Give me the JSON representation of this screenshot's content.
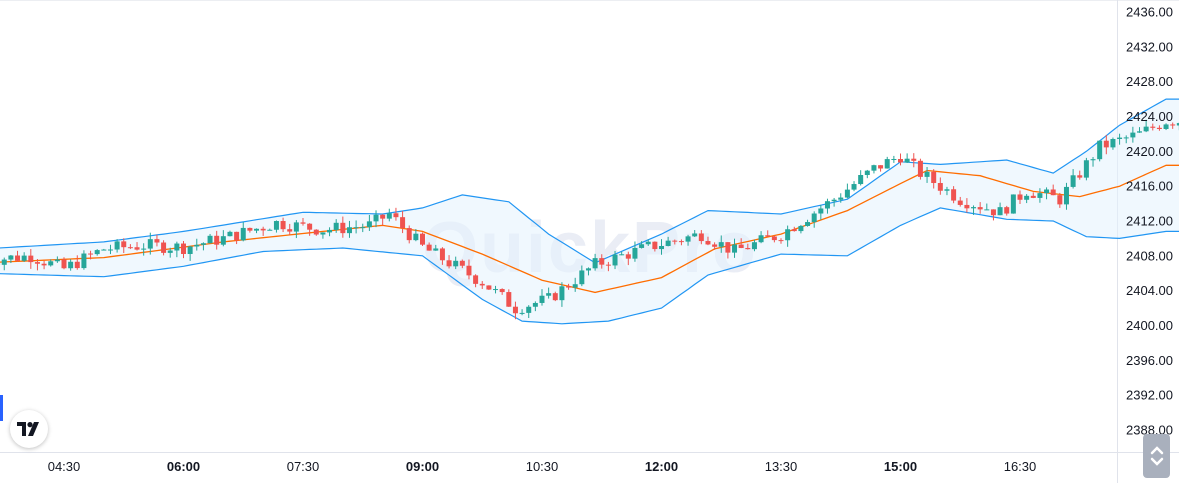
{
  "watermark": "QuickPro",
  "icons": {
    "logo": "tradingview-logo-icon",
    "scroll": "chevron-up-down-icon"
  },
  "colors": {
    "up": "#26a69a",
    "down": "#ef5350",
    "band_line": "#2196f3",
    "band_fill": "#e3f2fd",
    "basis": "#ff6d00",
    "background": "#ffffff"
  },
  "chart_data": {
    "type": "candlestick",
    "indicator": "Bollinger Bands",
    "y_axis": {
      "min": 2387,
      "max": 2437,
      "ticks": [
        "2436.00",
        "2432.00",
        "2428.00",
        "2424.00",
        "2420.00",
        "2416.00",
        "2412.00",
        "2408.00",
        "2404.00",
        "2400.00",
        "2396.00",
        "2392.00",
        "2388.00"
      ]
    },
    "x_axis": {
      "start": "03:30",
      "end": "18:40",
      "interval_minutes": 5,
      "ticks": [
        {
          "label": "04:30",
          "bold": false
        },
        {
          "label": "06:00",
          "bold": true
        },
        {
          "label": "07:30",
          "bold": false
        },
        {
          "label": "09:00",
          "bold": true
        },
        {
          "label": "10:30",
          "bold": false
        },
        {
          "label": "12:00",
          "bold": true
        },
        {
          "label": "13:30",
          "bold": false
        },
        {
          "label": "15:00",
          "bold": true
        },
        {
          "label": "16:30",
          "bold": false
        }
      ]
    },
    "close_anchors": [
      [
        "03:30",
        2407.5
      ],
      [
        "04:05",
        2408.0
      ],
      [
        "04:30",
        2406.5
      ],
      [
        "05:00",
        2408.8
      ],
      [
        "05:30",
        2409.2
      ],
      [
        "06:00",
        2409.0
      ],
      [
        "06:30",
        2410.0
      ],
      [
        "07:10",
        2411.8
      ],
      [
        "07:45",
        2411.0
      ],
      [
        "08:20",
        2411.5
      ],
      [
        "08:35",
        2412.8
      ],
      [
        "09:00",
        2409.0
      ],
      [
        "09:45",
        2405.0
      ],
      [
        "10:10",
        2402.0
      ],
      [
        "10:35",
        2403.0
      ],
      [
        "11:10",
        2407.0
      ],
      [
        "11:50",
        2409.0
      ],
      [
        "12:30",
        2410.5
      ],
      [
        "12:55",
        2408.5
      ],
      [
        "13:30",
        2410.5
      ],
      [
        "14:10",
        2414.5
      ],
      [
        "14:40",
        2418.0
      ],
      [
        "15:00",
        2419.5
      ],
      [
        "15:15",
        2417.5
      ],
      [
        "15:45",
        2414.5
      ],
      [
        "16:15",
        2413.0
      ],
      [
        "16:35",
        2415.5
      ],
      [
        "17:00",
        2414.5
      ],
      [
        "17:30",
        2420.5
      ],
      [
        "18:00",
        2422.0
      ],
      [
        "18:20",
        2423.5
      ]
    ],
    "bands": {
      "basis": [
        [
          "03:30",
          2407.2
        ],
        [
          "05:00",
          2407.8
        ],
        [
          "06:30",
          2409.6
        ],
        [
          "07:45",
          2410.8
        ],
        [
          "08:30",
          2411.5
        ],
        [
          "09:00",
          2410.8
        ],
        [
          "09:45",
          2408.2
        ],
        [
          "10:30",
          2405.2
        ],
        [
          "11:10",
          2403.8
        ],
        [
          "12:00",
          2405.5
        ],
        [
          "12:40",
          2408.8
        ],
        [
          "13:30",
          2410.5
        ],
        [
          "14:20",
          2413.2
        ],
        [
          "15:00",
          2416.3
        ],
        [
          "15:20",
          2417.8
        ],
        [
          "16:00",
          2417.2
        ],
        [
          "16:40",
          2415.4
        ],
        [
          "17:15",
          2414.8
        ],
        [
          "17:45",
          2416.0
        ],
        [
          "18:20",
          2418.4
        ]
      ],
      "upper": [
        [
          "03:30",
          2408.8
        ],
        [
          "05:00",
          2409.6
        ],
        [
          "06:00",
          2410.8
        ],
        [
          "07:30",
          2413.0
        ],
        [
          "08:30",
          2412.8
        ],
        [
          "09:00",
          2413.5
        ],
        [
          "09:30",
          2415.0
        ],
        [
          "10:05",
          2414.2
        ],
        [
          "10:35",
          2410.5
        ],
        [
          "11:10",
          2407.2
        ],
        [
          "12:00",
          2410.5
        ],
        [
          "12:35",
          2413.2
        ],
        [
          "13:30",
          2412.8
        ],
        [
          "14:20",
          2414.5
        ],
        [
          "15:00",
          2418.8
        ],
        [
          "15:30",
          2418.5
        ],
        [
          "16:20",
          2419.0
        ],
        [
          "16:55",
          2417.5
        ],
        [
          "17:20",
          2420.0
        ],
        [
          "17:45",
          2423.0
        ],
        [
          "18:20",
          2426.0
        ]
      ],
      "lower": [
        [
          "03:30",
          2406.0
        ],
        [
          "05:00",
          2405.6
        ],
        [
          "06:00",
          2406.8
        ],
        [
          "07:00",
          2408.5
        ],
        [
          "08:00",
          2408.9
        ],
        [
          "09:00",
          2408.0
        ],
        [
          "09:45",
          2403.0
        ],
        [
          "10:15",
          2400.5
        ],
        [
          "10:45",
          2400.2
        ],
        [
          "11:20",
          2400.5
        ],
        [
          "12:00",
          2402.0
        ],
        [
          "12:35",
          2405.8
        ],
        [
          "13:30",
          2408.2
        ],
        [
          "14:20",
          2408.0
        ],
        [
          "15:00",
          2411.5
        ],
        [
          "15:30",
          2413.5
        ],
        [
          "16:20",
          2412.2
        ],
        [
          "16:55",
          2412.0
        ],
        [
          "17:20",
          2410.2
        ],
        [
          "17:45",
          2410.0
        ],
        [
          "18:20",
          2410.8
        ]
      ]
    }
  }
}
